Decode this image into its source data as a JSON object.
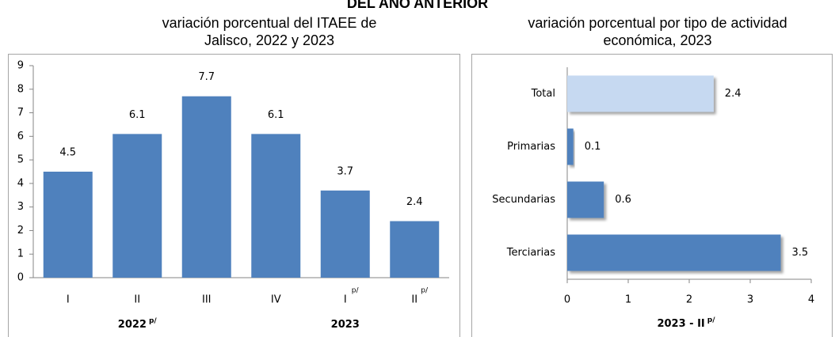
{
  "header": "DEL AÑO ANTERIOR",
  "chart_data": [
    {
      "type": "bar",
      "title": [
        "variación porcentual del ITAEE de",
        "Jalisco, 2022 y 2023"
      ],
      "categories": [
        "I",
        "II",
        "III",
        "IV",
        "I",
        "II"
      ],
      "category_notes": [
        null,
        null,
        null,
        null,
        "p/",
        "p/"
      ],
      "groups": [
        {
          "label": "2022",
          "note": "p/"
        },
        {
          "label": "2023"
        }
      ],
      "values": [
        4.5,
        6.1,
        7.7,
        6.1,
        3.7,
        2.4
      ],
      "color": "#4f81bd",
      "ylim": [
        0,
        9
      ],
      "yticks": [
        0,
        1,
        2,
        3,
        4,
        5,
        6,
        7,
        8,
        9
      ]
    },
    {
      "type": "hbar",
      "title": [
        "variación porcentual por tipo de actividad",
        "económica, 2023"
      ],
      "categories": [
        "Total",
        "Primarias",
        "Secundarias",
        "Terciarias"
      ],
      "values": [
        2.4,
        0.1,
        0.6,
        3.5
      ],
      "colors": [
        "#c6d9f1",
        "#4f81bd",
        "#4f81bd",
        "#4f81bd"
      ],
      "xlabel": "2023 - II",
      "xlabel_note": "p/",
      "xlim": [
        0,
        4
      ],
      "xticks": [
        0,
        1,
        2,
        3,
        4
      ]
    }
  ]
}
